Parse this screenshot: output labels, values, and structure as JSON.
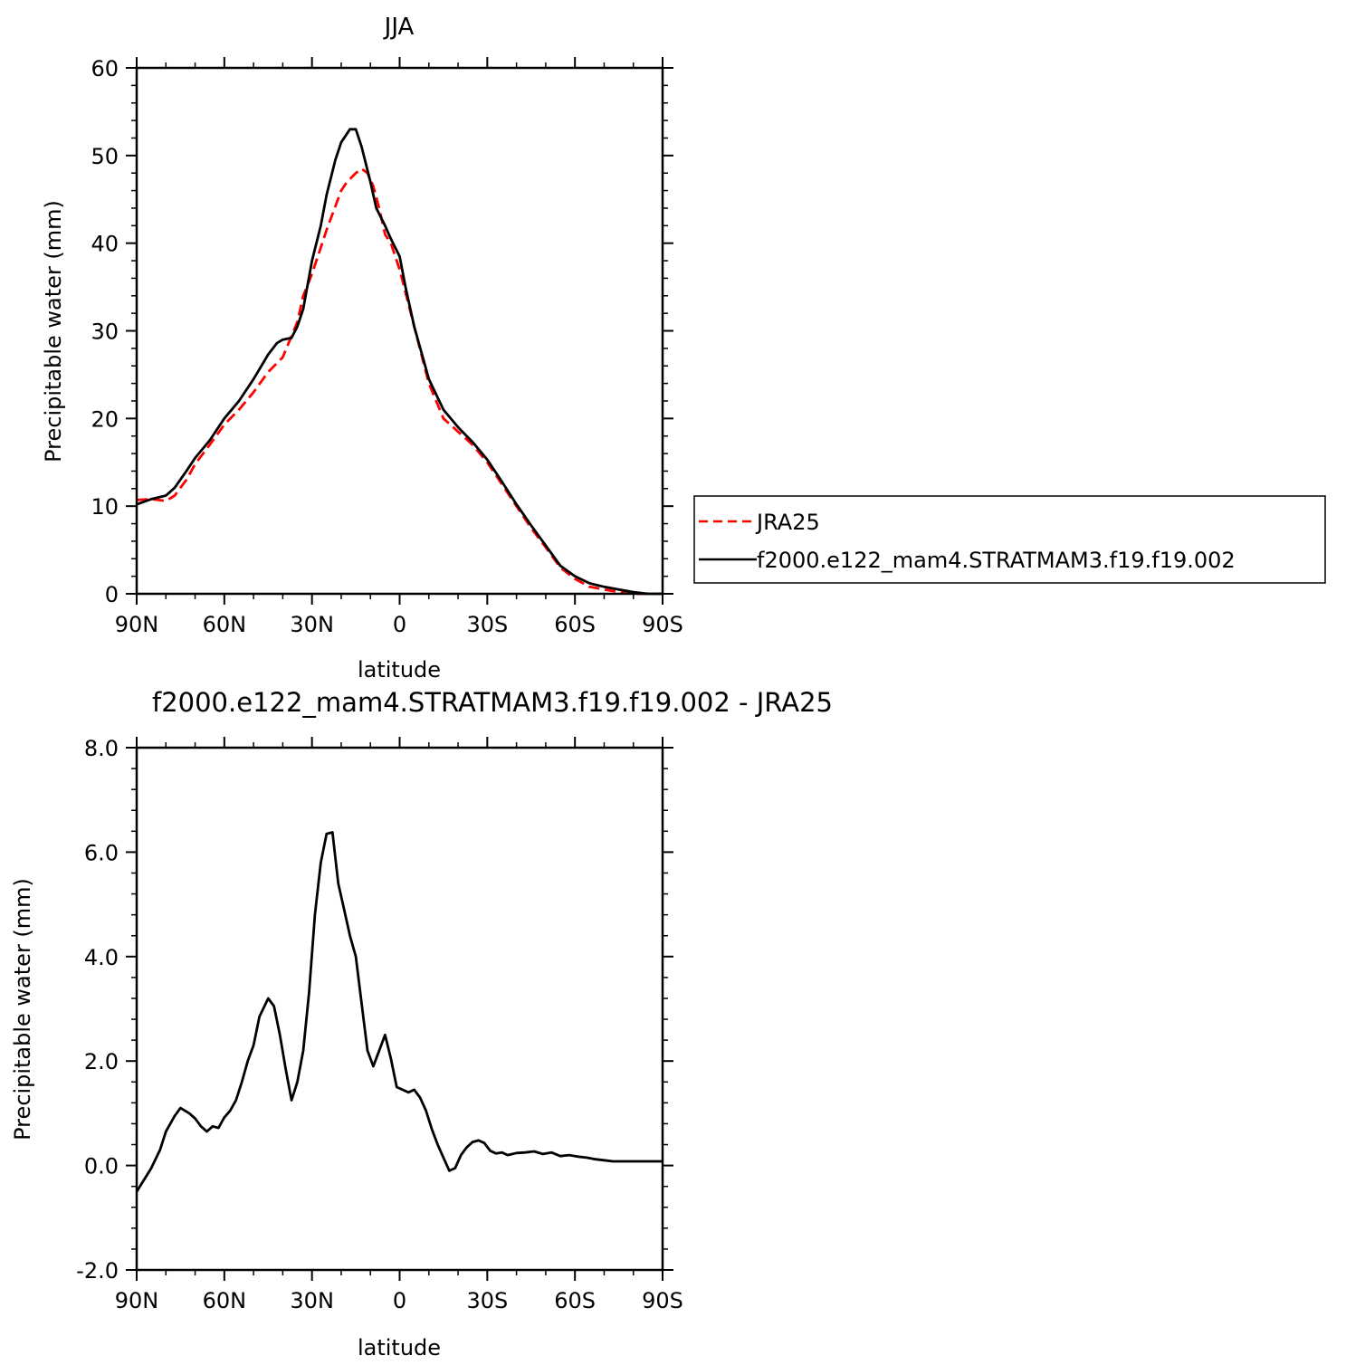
{
  "chart_data": [
    {
      "type": "line",
      "title": "JJA",
      "xlabel": "latitude",
      "ylabel": "Precipitable water (mm)",
      "xlim": [
        90,
        -90
      ],
      "ylim": [
        0,
        60
      ],
      "x_ticks": [
        90,
        60,
        30,
        0,
        -30,
        -60,
        -90
      ],
      "x_tick_labels": [
        "90N",
        "60N",
        "30N",
        "0",
        "30S",
        "60S",
        "90S"
      ],
      "y_ticks": [
        0,
        10,
        20,
        30,
        40,
        50,
        60
      ],
      "y_tick_labels": [
        "0",
        "10",
        "20",
        "30",
        "40",
        "50",
        "60"
      ],
      "grid": false,
      "legend": {
        "placement": "right"
      },
      "series": [
        {
          "name": "JRA25",
          "color": "#ff0000",
          "dash": "dashed",
          "x": [
            90,
            85,
            80,
            77,
            73,
            70,
            65,
            60,
            55,
            50,
            45,
            40,
            35,
            33,
            30,
            25,
            20,
            18,
            15,
            13,
            11,
            9,
            7,
            5,
            3,
            0,
            -5,
            -10,
            -15,
            -20,
            -25,
            -30,
            -35,
            -40,
            -45,
            -50,
            -55,
            -60,
            -65,
            -70,
            -75,
            -80,
            -85,
            -90
          ],
          "y": [
            10.7,
            10.8,
            10.6,
            11.2,
            13.0,
            14.8,
            17.0,
            19.3,
            21.0,
            23.0,
            25.3,
            27.0,
            31.0,
            34.0,
            36.5,
            41.5,
            46.0,
            47.0,
            48.0,
            48.5,
            48.0,
            46.5,
            44.0,
            41.0,
            40.0,
            37.0,
            30.5,
            24.0,
            20.0,
            18.5,
            17.0,
            15.0,
            12.5,
            10.0,
            7.5,
            5.3,
            3.0,
            1.7,
            0.8,
            0.5,
            0.2,
            0.0,
            0.0,
            0.0
          ]
        },
        {
          "name": "f2000.e122_mam4.STRATMAM3.f19.f19.002",
          "color": "#000000",
          "dash": "solid",
          "x": [
            90,
            85,
            80,
            77,
            73,
            70,
            65,
            60,
            55,
            50,
            45,
            42,
            40,
            37,
            35,
            33,
            30,
            27,
            25,
            22,
            20,
            17,
            15,
            13,
            10,
            8,
            5,
            3,
            0,
            -2,
            -5,
            -10,
            -15,
            -20,
            -25,
            -30,
            -35,
            -40,
            -45,
            -50,
            -55,
            -60,
            -65,
            -70,
            -75,
            -80,
            -85,
            -90
          ],
          "y": [
            10.2,
            10.8,
            11.2,
            12.1,
            14.0,
            15.5,
            17.5,
            20.0,
            22.0,
            24.5,
            27.3,
            28.6,
            29.0,
            29.2,
            30.5,
            32.5,
            38.0,
            42.0,
            45.5,
            49.5,
            51.5,
            53.0,
            53.0,
            51.0,
            47.0,
            44.0,
            42.0,
            40.5,
            38.5,
            35.0,
            30.5,
            24.5,
            21.0,
            19.0,
            17.3,
            15.3,
            12.8,
            10.2,
            7.8,
            5.5,
            3.2,
            2.0,
            1.2,
            0.8,
            0.5,
            0.2,
            0.0,
            0.0
          ]
        }
      ]
    },
    {
      "type": "line",
      "title": "f2000.e122_mam4.STRATMAM3.f19.f19.002 - JRA25",
      "xlabel": "latitude",
      "ylabel": "Precipitable water (mm)",
      "xlim": [
        90,
        -90
      ],
      "ylim": [
        -2,
        8
      ],
      "x_ticks": [
        90,
        60,
        30,
        0,
        -30,
        -60,
        -90
      ],
      "x_tick_labels": [
        "90N",
        "60N",
        "30N",
        "0",
        "30S",
        "60S",
        "90S"
      ],
      "y_ticks": [
        -2,
        0,
        2,
        4,
        6,
        8
      ],
      "y_tick_labels": [
        "-2.0",
        "0.0",
        "2.0",
        "4.0",
        "6.0",
        "8.0"
      ],
      "grid": false,
      "series": [
        {
          "name": "",
          "color": "#000000",
          "dash": "solid",
          "x": [
            90,
            85,
            82,
            80,
            77,
            75,
            72,
            70,
            68,
            66,
            64,
            62,
            60,
            58,
            56,
            54,
            52,
            50,
            48,
            45,
            43,
            41,
            39,
            37,
            35,
            33,
            31,
            29,
            27,
            25,
            23,
            21,
            19,
            17,
            15,
            13,
            11,
            9,
            7,
            5,
            3,
            1,
            -1,
            -3,
            -5,
            -7,
            -9,
            -11,
            -13,
            -15,
            -17,
            -19,
            -21,
            -23,
            -25,
            -27,
            -29,
            -31,
            -33,
            -35,
            -37,
            -40,
            -43,
            -46,
            -49,
            -52,
            -55,
            -58,
            -61,
            -64,
            -67,
            -70,
            -73,
            -76,
            -79,
            -82,
            -85,
            -88,
            -90
          ],
          "y": [
            -0.5,
            -0.05,
            0.3,
            0.65,
            0.95,
            1.1,
            1.0,
            0.9,
            0.75,
            0.65,
            0.75,
            0.72,
            0.92,
            1.05,
            1.25,
            1.6,
            2.0,
            2.3,
            2.85,
            3.2,
            3.05,
            2.5,
            1.85,
            1.25,
            1.6,
            2.2,
            3.3,
            4.8,
            5.8,
            6.35,
            6.38,
            5.4,
            4.9,
            4.4,
            4.0,
            3.1,
            2.2,
            1.9,
            2.2,
            2.5,
            2.05,
            1.5,
            1.45,
            1.4,
            1.45,
            1.3,
            1.05,
            0.7,
            0.4,
            0.15,
            -0.1,
            -0.05,
            0.2,
            0.35,
            0.45,
            0.48,
            0.43,
            0.28,
            0.23,
            0.25,
            0.2,
            0.24,
            0.25,
            0.27,
            0.22,
            0.25,
            0.18,
            0.2,
            0.17,
            0.15,
            0.12,
            0.1,
            0.08,
            0.08,
            0.08,
            0.08,
            0.08,
            0.08,
            0.08
          ]
        }
      ]
    }
  ]
}
